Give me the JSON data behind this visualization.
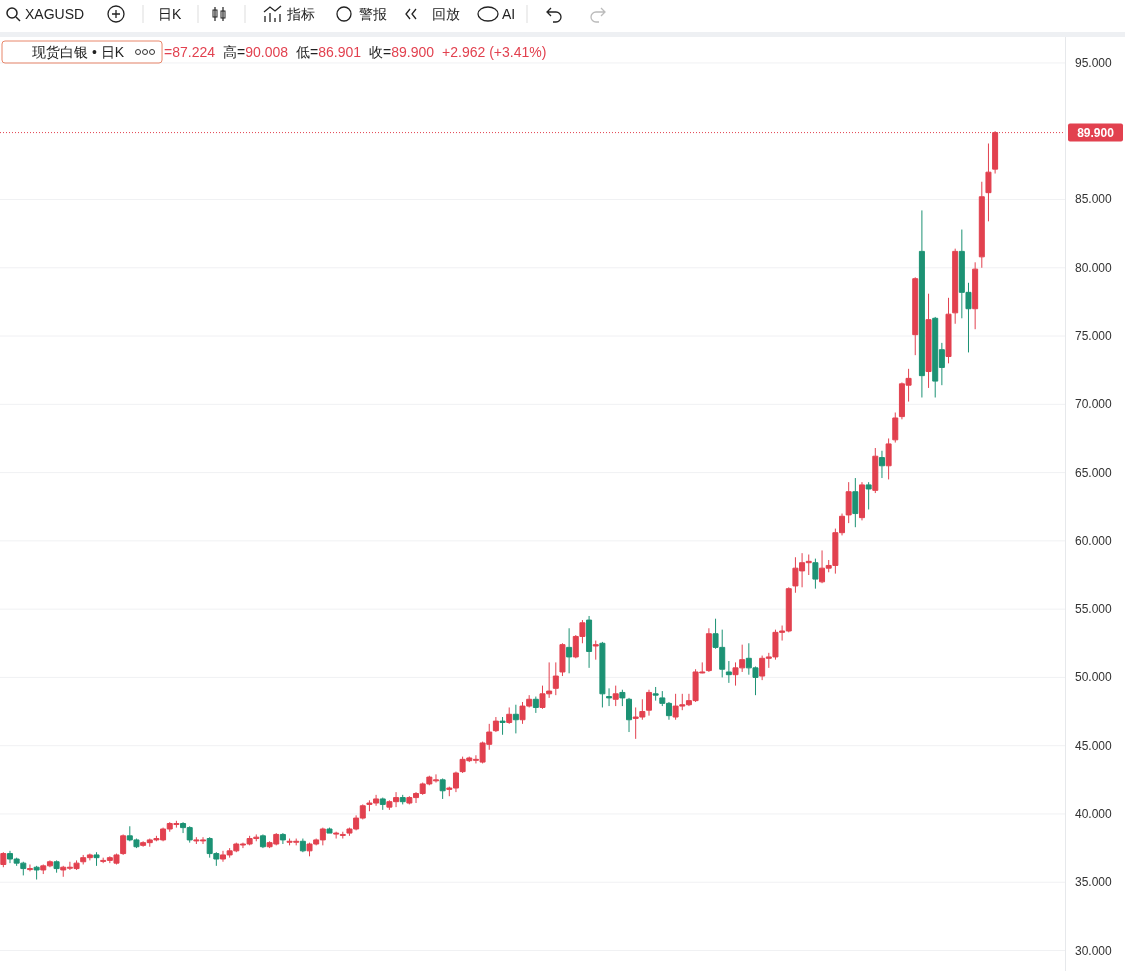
{
  "chart_data": {
    "type": "candlestick",
    "title": "现货白银 • 日K",
    "annotations": [
      "XAGUSD",
      "日K",
      "指标",
      "警报",
      "回放",
      "AI",
      "=87.224",
      "高=90.008",
      "低=86.901",
      "收=89.900",
      "+2.962 (+3.41%)"
    ],
    "categories": [
      null,
      null,
      null,
      null,
      null,
      null,
      null,
      null,
      null,
      null,
      null,
      null,
      null,
      null,
      null,
      null,
      null,
      null,
      null,
      null,
      null,
      null,
      null,
      null,
      null,
      null,
      null,
      null,
      null,
      null,
      null,
      null,
      null,
      null,
      null,
      null,
      null,
      null,
      null,
      null,
      null,
      null,
      null,
      null,
      null,
      null,
      null,
      null,
      null,
      null,
      null,
      null,
      null,
      null,
      null,
      null,
      null,
      null,
      null,
      null,
      null,
      null,
      null,
      null,
      null,
      null,
      null,
      null,
      null,
      null,
      null,
      null,
      null,
      null,
      null,
      null,
      null,
      null,
      null,
      null,
      null,
      null,
      null,
      null,
      null,
      null,
      null,
      null,
      null,
      null,
      null,
      null,
      null,
      null,
      null,
      null,
      null,
      null,
      null,
      null,
      null,
      null,
      null,
      null,
      null,
      null,
      null,
      null,
      null,
      null,
      null,
      null,
      null,
      null,
      null,
      null,
      null,
      null,
      null,
      null,
      null,
      null,
      null,
      null,
      null,
      null,
      null,
      null,
      null,
      null,
      null,
      null,
      null,
      null,
      null,
      null,
      null,
      null,
      null,
      null,
      null,
      null,
      null,
      null,
      null,
      null,
      null,
      null,
      null,
      null,
      null,
      null,
      null,
      null,
      null,
      null,
      null,
      null,
      null,
      null
    ],
    "ohlc": [
      [
        36.3,
        37.2,
        36.1,
        37.1
      ],
      [
        37.1,
        37.3,
        36.4,
        36.7
      ],
      [
        36.7,
        36.8,
        36.2,
        36.4
      ],
      [
        36.4,
        36.5,
        35.5,
        36.0
      ],
      [
        36.0,
        36.3,
        35.8,
        36.0
      ],
      [
        36.1,
        36.2,
        35.2,
        35.9
      ],
      [
        35.9,
        36.3,
        35.6,
        36.2
      ],
      [
        36.2,
        36.6,
        36.1,
        36.5
      ],
      [
        36.5,
        36.6,
        35.7,
        36.0
      ],
      [
        35.9,
        36.2,
        35.4,
        36.1
      ],
      [
        36.1,
        36.5,
        35.9,
        36.1
      ],
      [
        36.0,
        36.6,
        35.9,
        36.4
      ],
      [
        36.5,
        37.0,
        36.3,
        36.8
      ],
      [
        36.8,
        37.1,
        36.6,
        37.0
      ],
      [
        37.0,
        37.2,
        36.2,
        36.8
      ],
      [
        36.6,
        36.8,
        36.4,
        36.6
      ],
      [
        36.6,
        36.9,
        36.4,
        36.8
      ],
      [
        36.4,
        37.1,
        36.3,
        37.0
      ],
      [
        37.1,
        38.5,
        37.0,
        38.4
      ],
      [
        38.4,
        39.1,
        38.0,
        38.1
      ],
      [
        38.1,
        38.2,
        37.5,
        37.6
      ],
      [
        37.7,
        38.0,
        37.6,
        37.9
      ],
      [
        37.9,
        38.2,
        37.6,
        38.1
      ],
      [
        38.1,
        38.4,
        38.0,
        38.2
      ],
      [
        38.1,
        39.0,
        38.0,
        38.9
      ],
      [
        38.9,
        39.4,
        38.7,
        39.3
      ],
      [
        39.3,
        39.5,
        39.0,
        39.3
      ],
      [
        39.3,
        39.4,
        38.6,
        39.0
      ],
      [
        39.0,
        39.1,
        37.9,
        38.1
      ],
      [
        38.1,
        38.3,
        37.8,
        38.1
      ],
      [
        38.1,
        38.3,
        37.8,
        38.1
      ],
      [
        38.2,
        38.3,
        36.8,
        37.1
      ],
      [
        37.1,
        37.2,
        36.2,
        36.7
      ],
      [
        36.7,
        37.3,
        36.5,
        37.0
      ],
      [
        37.0,
        37.5,
        36.8,
        37.3
      ],
      [
        37.3,
        37.9,
        37.2,
        37.8
      ],
      [
        37.8,
        37.9,
        37.5,
        37.8
      ],
      [
        37.8,
        38.4,
        37.7,
        38.2
      ],
      [
        38.2,
        38.5,
        38.0,
        38.3
      ],
      [
        38.4,
        38.5,
        37.5,
        37.6
      ],
      [
        37.6,
        38.0,
        37.5,
        37.9
      ],
      [
        37.8,
        38.6,
        37.7,
        38.5
      ],
      [
        38.5,
        38.6,
        37.8,
        38.1
      ],
      [
        38.0,
        38.2,
        37.7,
        38.0
      ],
      [
        38.0,
        38.2,
        37.7,
        38.0
      ],
      [
        38.0,
        38.2,
        37.2,
        37.3
      ],
      [
        37.3,
        37.9,
        36.9,
        37.8
      ],
      [
        37.8,
        38.2,
        37.7,
        38.1
      ],
      [
        38.1,
        39.0,
        37.7,
        38.9
      ],
      [
        38.9,
        39.0,
        38.6,
        38.6
      ],
      [
        38.6,
        38.7,
        38.2,
        38.6
      ],
      [
        38.5,
        38.7,
        38.2,
        38.5
      ],
      [
        38.6,
        39.0,
        38.4,
        38.9
      ],
      [
        38.9,
        39.9,
        38.8,
        39.7
      ],
      [
        39.7,
        40.7,
        39.6,
        40.6
      ],
      [
        40.7,
        41.0,
        40.2,
        40.8
      ],
      [
        40.8,
        41.4,
        40.6,
        41.1
      ],
      [
        41.1,
        41.2,
        40.3,
        40.7
      ],
      [
        40.5,
        41.0,
        40.3,
        40.9
      ],
      [
        40.9,
        41.6,
        40.5,
        41.2
      ],
      [
        41.2,
        41.4,
        40.7,
        40.9
      ],
      [
        40.8,
        41.3,
        40.7,
        41.2
      ],
      [
        41.2,
        41.6,
        40.8,
        41.5
      ],
      [
        41.5,
        42.3,
        41.4,
        42.2
      ],
      [
        42.2,
        42.8,
        42.1,
        42.7
      ],
      [
        42.5,
        42.9,
        42.3,
        42.5
      ],
      [
        42.5,
        42.6,
        41.1,
        41.7
      ],
      [
        41.8,
        42.0,
        41.3,
        41.9
      ],
      [
        41.9,
        43.1,
        41.6,
        43.0
      ],
      [
        43.1,
        44.2,
        43.0,
        44.0
      ],
      [
        43.9,
        44.2,
        43.8,
        44.1
      ],
      [
        44.0,
        44.3,
        43.7,
        44.0
      ],
      [
        43.8,
        45.3,
        43.7,
        45.2
      ],
      [
        45.1,
        46.6,
        44.7,
        46.0
      ],
      [
        46.1,
        47.1,
        46.0,
        46.8
      ],
      [
        46.8,
        47.1,
        45.8,
        46.7
      ],
      [
        46.7,
        47.8,
        46.6,
        47.3
      ],
      [
        47.3,
        48.0,
        45.9,
        46.9
      ],
      [
        46.9,
        48.2,
        46.6,
        47.9
      ],
      [
        47.9,
        48.7,
        47.8,
        48.4
      ],
      [
        48.4,
        48.6,
        47.4,
        47.8
      ],
      [
        47.8,
        49.4,
        47.7,
        48.8
      ],
      [
        48.8,
        51.1,
        48.5,
        49.0
      ],
      [
        49.2,
        51.1,
        48.7,
        50.1
      ],
      [
        50.4,
        52.5,
        50.1,
        52.4
      ],
      [
        52.2,
        53.6,
        50.3,
        51.5
      ],
      [
        51.5,
        53.1,
        51.4,
        53.0
      ],
      [
        53.0,
        54.2,
        52.5,
        54.0
      ],
      [
        54.2,
        54.5,
        50.7,
        51.9
      ],
      [
        52.3,
        52.7,
        51.3,
        52.4
      ],
      [
        52.5,
        52.6,
        47.8,
        48.8
      ],
      [
        48.6,
        49.2,
        47.9,
        48.5
      ],
      [
        48.4,
        49.4,
        47.9,
        48.8
      ],
      [
        48.9,
        49.1,
        47.9,
        48.5
      ],
      [
        48.4,
        48.5,
        46.0,
        46.9
      ],
      [
        47.0,
        47.8,
        45.5,
        47.1
      ],
      [
        47.1,
        48.4,
        46.9,
        47.5
      ],
      [
        47.6,
        49.1,
        47.2,
        48.9
      ],
      [
        48.8,
        49.3,
        48.3,
        48.7
      ],
      [
        48.5,
        49.0,
        47.9,
        48.1
      ],
      [
        48.1,
        48.2,
        46.9,
        47.2
      ],
      [
        47.1,
        48.8,
        46.9,
        47.9
      ],
      [
        47.9,
        48.8,
        47.6,
        48.0
      ],
      [
        48.0,
        48.8,
        47.9,
        48.3
      ],
      [
        48.3,
        50.6,
        48.2,
        50.4
      ],
      [
        50.4,
        51.1,
        50.3,
        50.4
      ],
      [
        50.5,
        53.6,
        50.4,
        53.2
      ],
      [
        53.2,
        54.3,
        52.1,
        52.2
      ],
      [
        52.2,
        53.5,
        50.0,
        50.6
      ],
      [
        50.4,
        51.2,
        49.6,
        50.2
      ],
      [
        50.2,
        51.1,
        49.4,
        50.7
      ],
      [
        50.7,
        52.4,
        50.4,
        51.3
      ],
      [
        51.4,
        52.5,
        50.2,
        50.7
      ],
      [
        50.7,
        50.8,
        48.7,
        50.0
      ],
      [
        50.1,
        51.6,
        49.8,
        51.4
      ],
      [
        51.4,
        51.8,
        50.7,
        51.5
      ],
      [
        51.5,
        53.5,
        51.3,
        53.3
      ],
      [
        53.3,
        53.8,
        52.7,
        53.4
      ],
      [
        53.4,
        56.6,
        53.3,
        56.5
      ],
      [
        56.7,
        58.8,
        56.2,
        58.0
      ],
      [
        57.8,
        59.1,
        56.6,
        58.4
      ],
      [
        58.4,
        59.0,
        57.5,
        58.5
      ],
      [
        58.4,
        58.7,
        56.5,
        57.2
      ],
      [
        57.0,
        59.3,
        56.9,
        58.0
      ],
      [
        58.0,
        58.6,
        57.7,
        58.2
      ],
      [
        58.2,
        60.9,
        57.6,
        60.6
      ],
      [
        60.6,
        62.0,
        60.4,
        61.8
      ],
      [
        61.9,
        64.3,
        61.3,
        63.6
      ],
      [
        63.6,
        64.6,
        61.0,
        62.0
      ],
      [
        61.7,
        64.3,
        61.5,
        64.1
      ],
      [
        64.1,
        64.3,
        62.3,
        63.8
      ],
      [
        63.7,
        66.8,
        63.5,
        66.2
      ],
      [
        66.1,
        66.6,
        64.6,
        65.5
      ],
      [
        65.5,
        67.5,
        64.5,
        67.1
      ],
      [
        67.4,
        69.4,
        67.2,
        69.0
      ],
      [
        69.1,
        71.6,
        68.9,
        71.5
      ],
      [
        71.4,
        72.6,
        70.2,
        71.9
      ],
      [
        75.1,
        79.3,
        73.6,
        79.2
      ],
      [
        81.2,
        84.2,
        70.5,
        72.1
      ],
      [
        72.4,
        78.1,
        71.2,
        76.2
      ],
      [
        76.3,
        76.4,
        70.5,
        71.7
      ],
      [
        74.0,
        74.5,
        71.4,
        72.7
      ],
      [
        73.5,
        77.8,
        73.0,
        76.6
      ],
      [
        76.7,
        81.4,
        75.9,
        81.2
      ],
      [
        81.2,
        82.8,
        76.3,
        78.2
      ],
      [
        78.2,
        78.9,
        73.8,
        77.0
      ],
      [
        77.0,
        80.4,
        75.5,
        79.9
      ],
      [
        80.8,
        86.3,
        80.0,
        85.2
      ],
      [
        85.5,
        89.1,
        83.4,
        87.0
      ],
      [
        87.224,
        90.008,
        86.901,
        89.9
      ],
      null,
      null,
      null,
      null,
      null,
      null,
      null,
      null,
      null,
      null
    ],
    "colors": [
      "#e2414f",
      "#1c9274",
      "#1c9274",
      "#1c9274",
      "#e2414f",
      "#1c9274",
      "#e2414f",
      "#e2414f",
      "#1c9274",
      "#e2414f",
      "#e2414f",
      "#e2414f",
      "#e2414f",
      "#e2414f",
      "#1c9274",
      "#e2414f",
      "#e2414f",
      "#e2414f",
      "#e2414f",
      "#1c9274",
      "#1c9274",
      "#e2414f",
      "#e2414f",
      "#e2414f",
      "#e2414f",
      "#e2414f",
      "#e2414f",
      "#1c9274",
      "#1c9274",
      "#e2414f",
      "#e2414f",
      "#1c9274",
      "#1c9274",
      "#e2414f",
      "#e2414f",
      "#e2414f",
      "#e2414f",
      "#e2414f",
      "#e2414f",
      "#1c9274",
      "#e2414f",
      "#e2414f",
      "#1c9274",
      "#e2414f",
      "#e2414f",
      "#1c9274",
      "#e2414f",
      "#e2414f",
      "#e2414f",
      "#1c9274",
      "#e2414f",
      "#e2414f",
      "#e2414f",
      "#e2414f",
      "#e2414f",
      "#e2414f",
      "#e2414f",
      "#1c9274",
      "#e2414f",
      "#e2414f",
      "#1c9274",
      "#e2414f",
      "#e2414f",
      "#e2414f",
      "#e2414f",
      "#e2414f",
      "#1c9274",
      "#e2414f",
      "#e2414f",
      "#e2414f",
      "#e2414f",
      "#e2414f",
      "#e2414f",
      "#e2414f",
      "#e2414f",
      "#1c9274",
      "#e2414f",
      "#1c9274",
      "#e2414f",
      "#e2414f",
      "#1c9274",
      "#e2414f",
      "#e2414f",
      "#e2414f",
      "#e2414f",
      "#1c9274",
      "#e2414f",
      "#e2414f",
      "#1c9274",
      "#e2414f",
      "#1c9274",
      "#1c9274",
      "#e2414f",
      "#1c9274",
      "#1c9274",
      "#e2414f",
      "#e2414f",
      "#e2414f",
      "#1c9274",
      "#1c9274",
      "#1c9274",
      "#e2414f",
      "#e2414f",
      "#e2414f",
      "#e2414f",
      "#e2414f",
      "#e2414f",
      "#1c9274",
      "#1c9274",
      "#1c9274",
      "#e2414f",
      "#e2414f",
      "#1c9274",
      "#1c9274",
      "#e2414f",
      "#e2414f",
      "#e2414f",
      "#e2414f",
      "#e2414f",
      "#e2414f",
      "#e2414f",
      "#e2414f",
      "#1c9274",
      "#e2414f",
      "#e2414f",
      "#e2414f",
      "#e2414f",
      "#e2414f",
      "#1c9274",
      "#e2414f",
      "#1c9274",
      "#e2414f",
      "#1c9274",
      "#e2414f",
      "#e2414f",
      "#e2414f",
      "#e2414f",
      "#e2414f",
      "#1c9274",
      "#e2414f",
      "#1c9274",
      "#1c9274",
      "#e2414f",
      "#e2414f",
      "#1c9274",
      "#1c9274",
      "#e2414f",
      "#e2414f",
      "#e2414f",
      "#e2414f",
      null,
      null,
      null,
      null,
      null,
      null,
      null,
      null,
      null,
      null
    ],
    "ylim": [
      28.5,
      96.9
    ],
    "yticks": [
      {
        "value": 30,
        "label": "30.000"
      },
      {
        "value": 35,
        "label": "35.000"
      },
      {
        "value": 40,
        "label": "40.000"
      },
      {
        "value": 45,
        "label": "45.000"
      },
      {
        "value": 50,
        "label": "50.000"
      },
      {
        "value": 55,
        "label": "55.000"
      },
      {
        "value": 60,
        "label": "60.000"
      },
      {
        "value": 65,
        "label": "65.000"
      },
      {
        "value": 70,
        "label": "70.000"
      },
      {
        "value": 75,
        "label": "75.000"
      },
      {
        "value": 80,
        "label": "80.000"
      },
      {
        "value": 85,
        "label": "85.000"
      },
      {
        "value": 95,
        "label": "95.000"
      }
    ],
    "grid": "y",
    "ref_lines": [
      {
        "axis": "y",
        "value": 89.9,
        "label": "89.900",
        "color": "#e2414f",
        "line_style": "dotted"
      }
    ]
  }
}
